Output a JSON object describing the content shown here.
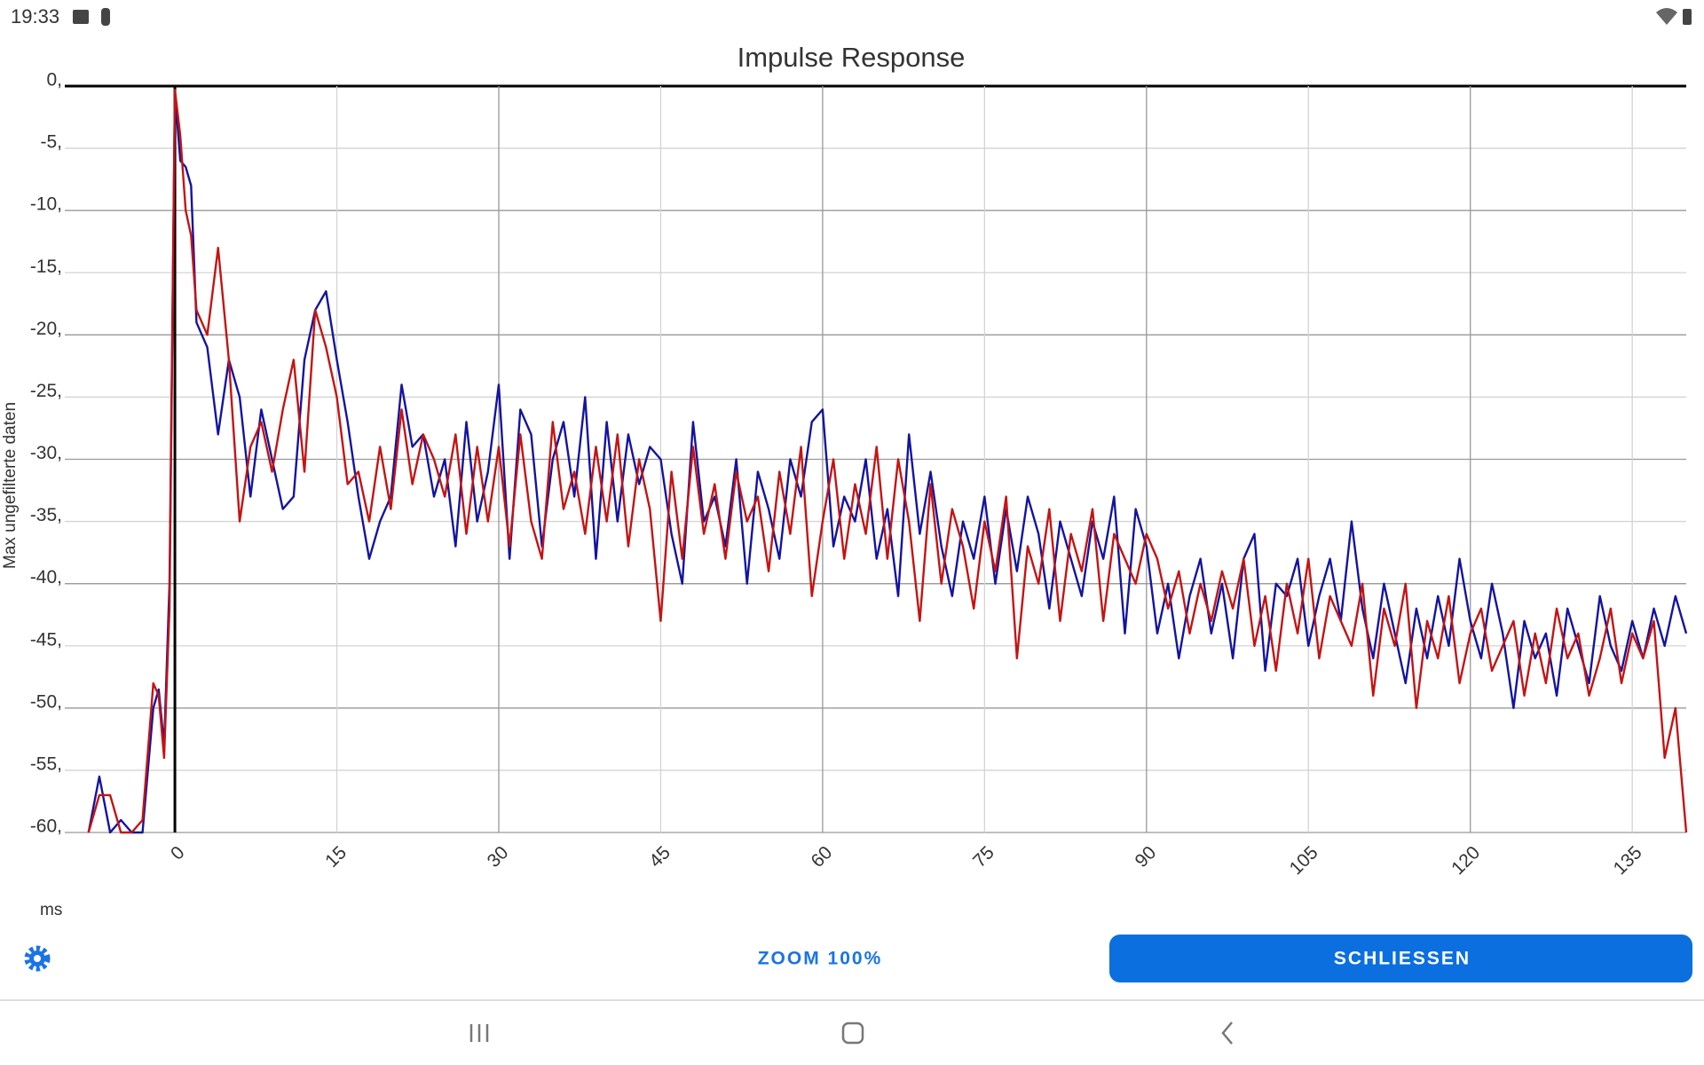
{
  "status_bar": {
    "time": "19:33"
  },
  "chart_data": {
    "type": "line",
    "title": "Impulse Response",
    "x_label": "ms",
    "y_label": "Max ungefilterte daten",
    "xlim": [
      -10.2,
      140
    ],
    "ylim": [
      -60,
      0
    ],
    "xticks": [
      0,
      15,
      30,
      45,
      60,
      75,
      90,
      105,
      120,
      135
    ],
    "yticks": [
      {
        "value": -60,
        "label": "-60,"
      },
      {
        "value": -55,
        "label": "-55,"
      },
      {
        "value": -50,
        "label": "-50,"
      },
      {
        "value": -45,
        "label": "-45,"
      },
      {
        "value": -40,
        "label": "-40,"
      },
      {
        "value": -35,
        "label": "-35,"
      },
      {
        "value": -30,
        "label": "-30,"
      },
      {
        "value": -25,
        "label": "-25,"
      },
      {
        "value": -20,
        "label": "-20,"
      },
      {
        "value": -15,
        "label": "-15,"
      },
      {
        "value": -10,
        "label": "-10,"
      },
      {
        "value": -5,
        "label": "-5,"
      },
      {
        "value": 0,
        "label": "0,"
      }
    ],
    "grid": true,
    "x": [
      -8,
      -7,
      -6,
      -5,
      -4,
      -3,
      -2,
      -1.5,
      -1,
      -0.5,
      0,
      0.5,
      1,
      1.5,
      2,
      3,
      4,
      5,
      6,
      7,
      8,
      9,
      10,
      11,
      12,
      13,
      14,
      15,
      16,
      17,
      18,
      19,
      20,
      21,
      22,
      23,
      24,
      25,
      26,
      27,
      28,
      29,
      30,
      31,
      32,
      33,
      34,
      35,
      36,
      37,
      38,
      39,
      40,
      41,
      42,
      43,
      44,
      45,
      46,
      47,
      48,
      49,
      50,
      51,
      52,
      53,
      54,
      55,
      56,
      57,
      58,
      59,
      60,
      61,
      62,
      63,
      64,
      65,
      66,
      67,
      68,
      69,
      70,
      71,
      72,
      73,
      74,
      75,
      76,
      77,
      78,
      79,
      80,
      81,
      82,
      83,
      84,
      85,
      86,
      87,
      88,
      89,
      90,
      91,
      92,
      93,
      94,
      95,
      96,
      97,
      98,
      99,
      100,
      101,
      102,
      103,
      104,
      105,
      106,
      107,
      108,
      109,
      110,
      111,
      112,
      113,
      114,
      115,
      116,
      117,
      118,
      119,
      120,
      121,
      122,
      123,
      124,
      125,
      126,
      127,
      128,
      129,
      130,
      131,
      132,
      133,
      134,
      135,
      136,
      137,
      138,
      139,
      140
    ],
    "series": [
      {
        "color": "#1414a0",
        "values": [
          -60,
          -55.5,
          -60,
          -59,
          -60,
          -60,
          -50,
          -48.5,
          -53,
          -40,
          -0.5,
          -6,
          -6.5,
          -8,
          -19,
          -21,
          -28,
          -22,
          -25,
          -33,
          -26,
          -30,
          -34,
          -33,
          -22,
          -18,
          -16.5,
          -22,
          -27,
          -33,
          -38,
          -35,
          -33,
          -24,
          -29,
          -28,
          -33,
          -30,
          -37,
          -27,
          -35,
          -31,
          -24,
          -38,
          -26,
          -28,
          -37,
          -30,
          -27,
          -33,
          -25,
          -38,
          -27,
          -35,
          -28,
          -32,
          -29,
          -30,
          -36,
          -40,
          -27,
          -35,
          -33,
          -37,
          -30,
          -40,
          -31,
          -34,
          -38,
          -30,
          -33,
          -27,
          -26,
          -37,
          -33,
          -35,
          -30,
          -38,
          -34,
          -41,
          -28,
          -36,
          -31,
          -37,
          -41,
          -35,
          -38,
          -33,
          -40,
          -34,
          -39,
          -33,
          -36,
          -42,
          -35,
          -38,
          -41,
          -35,
          -38,
          -33,
          -44,
          -34,
          -37,
          -44,
          -40,
          -46,
          -41,
          -38,
          -44,
          -40,
          -46,
          -38,
          -36,
          -47,
          -40,
          -41,
          -38,
          -45,
          -41,
          -38,
          -43,
          -35,
          -42,
          -46,
          -40,
          -44,
          -48,
          -42,
          -46,
          -41,
          -45,
          -38,
          -43,
          -46,
          -40,
          -44,
          -50,
          -43,
          -46,
          -44,
          -49,
          -42,
          -45,
          -48,
          -41,
          -45,
          -47,
          -43,
          -46,
          -42,
          -45,
          -41,
          -44
        ]
      },
      {
        "color": "#c41414",
        "values": [
          -60,
          -57,
          -57,
          -60,
          -60,
          -59,
          -48,
          -49,
          -54,
          -42,
          -0.3,
          -4,
          -10,
          -12,
          -18,
          -20,
          -13,
          -22,
          -35,
          -29,
          -27,
          -31,
          -26,
          -22,
          -31,
          -18,
          -21,
          -25,
          -32,
          -31,
          -35,
          -29,
          -34,
          -26,
          -32,
          -28,
          -30,
          -33,
          -28,
          -36,
          -29,
          -35,
          -29,
          -37,
          -28,
          -35,
          -38,
          -27,
          -34,
          -31,
          -36,
          -29,
          -35,
          -28,
          -37,
          -30,
          -34,
          -43,
          -31,
          -38,
          -29,
          -36,
          -32,
          -38,
          -31,
          -35,
          -33,
          -39,
          -31,
          -36,
          -29,
          -41,
          -35,
          -30,
          -38,
          -32,
          -36,
          -29,
          -38,
          -30,
          -35,
          -43,
          -32,
          -40,
          -34,
          -37,
          -42,
          -35,
          -39,
          -33,
          -46,
          -37,
          -40,
          -34,
          -43,
          -36,
          -39,
          -34,
          -43,
          -36,
          -38,
          -40,
          -36,
          -38,
          -42,
          -39,
          -44,
          -40,
          -43,
          -39,
          -42,
          -38,
          -45,
          -41,
          -47,
          -40,
          -44,
          -38,
          -46,
          -41,
          -43,
          -45,
          -40,
          -49,
          -42,
          -45,
          -40,
          -50,
          -43,
          -46,
          -41,
          -48,
          -44,
          -42,
          -47,
          -45,
          -43,
          -49,
          -44,
          -48,
          -42,
          -46,
          -44,
          -49,
          -46,
          -42,
          -48,
          -44,
          -46,
          -43,
          -54,
          -50,
          -60
        ]
      }
    ]
  },
  "controls": {
    "zoom": "ZOOM 100%",
    "close": "SCHLIESSEN"
  }
}
